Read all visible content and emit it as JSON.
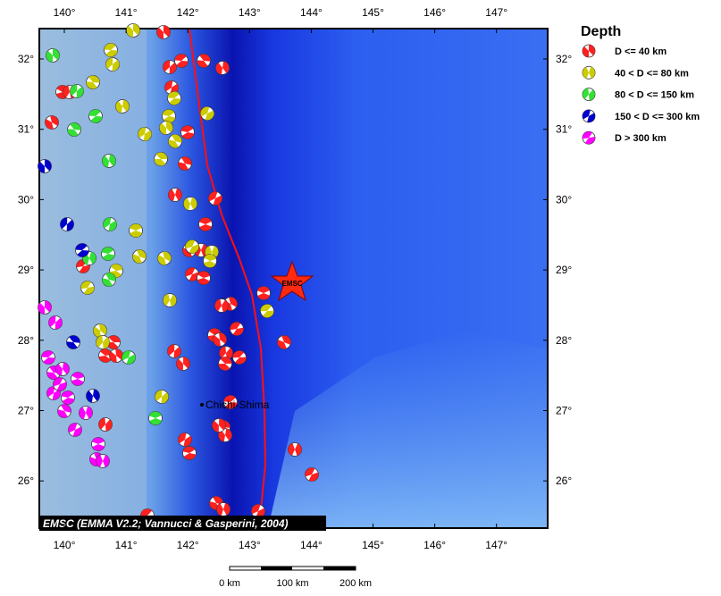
{
  "map": {
    "lon_labels": [
      "140°",
      "141°",
      "142°",
      "143°",
      "144°",
      "145°",
      "146°",
      "147°"
    ],
    "lat_labels": [
      "32°",
      "31°",
      "30°",
      "29°",
      "28°",
      "27°",
      "26°"
    ],
    "legend": {
      "title": "Depth",
      "items": [
        {
          "label": "D <= 40 km",
          "color": "#ff2020"
        },
        {
          "label": "40 < D <= 80 km",
          "color": "#cccc00"
        },
        {
          "label": "80 < D <= 150 km",
          "color": "#33e033"
        },
        {
          "label": "150 < D <= 300 km",
          "color": "#0000cc"
        },
        {
          "label": "D > 300 km",
          "color": "#ff00ff"
        }
      ]
    },
    "epicenter_label": "EMSC",
    "place_label": "Chichi-Shima",
    "credit": "EMSC (EMMA V2.2; Vannucci & Gasperini, 2004)",
    "scale_labels": [
      "0 km",
      "100 km",
      "200 km"
    ]
  }
}
